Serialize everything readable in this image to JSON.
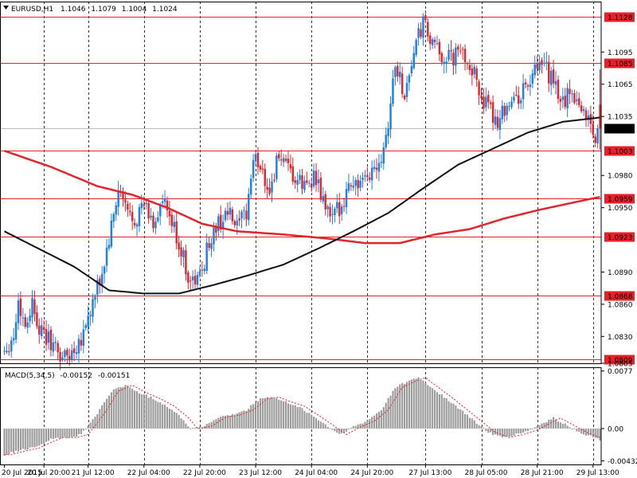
{
  "header": {
    "symbol": "EURUSD,H1",
    "open": "1.1046",
    "high": "1.1079",
    "low": "1.1004",
    "close": "1.1024"
  },
  "macd_header": {
    "name": "MACD(5,34,5)",
    "main": "-0.00152",
    "signal": "-0.00151"
  },
  "colors": {
    "background": "#ffffff",
    "bull": "#1e7fe6",
    "bear": "#e0262d",
    "level_line": "#e8202a",
    "ma_fast": "#111111",
    "ma_slow": "#e0262d",
    "histogram": "#9a9a9a",
    "signal": "#e0262d",
    "grid": "#000000"
  },
  "chart_data": [
    {
      "type": "candlestick",
      "symbol": "EURUSD",
      "timeframe": "H1",
      "ylim": [
        1.0805,
        1.1142
      ],
      "y_ticks": [
        "1.1095",
        "1.1065",
        "1.1035",
        "1.0980",
        "1.0950",
        "1.0890",
        "1.0860",
        "1.0830",
        "1.0805"
      ],
      "x_ticks": [
        "20 Jul 2015",
        "20 Jul 20:00",
        "21 Jul 12:00",
        "22 Jul 04:00",
        "22 Jul 20:00",
        "23 Jul 12:00",
        "24 Jul 04:00",
        "24 Jul 20:00",
        "27 Jul 13:00",
        "28 Jul 05:00",
        "28 Jul 21:00",
        "29 Jul 13:00"
      ],
      "levels": [
        "1.1128",
        "1.1085",
        "1.1003",
        "1.0959",
        "1.0923",
        "1.0868",
        "1.0809"
      ],
      "current_price": "1.1024",
      "anchors": [
        [
          0,
          1.0818
        ],
        [
          4,
          1.083
        ],
        [
          6,
          1.0862
        ],
        [
          9,
          1.084
        ],
        [
          12,
          1.0862
        ],
        [
          16,
          1.0832
        ],
        [
          20,
          1.0825
        ],
        [
          24,
          1.0812
        ],
        [
          28,
          1.0812
        ],
        [
          33,
          1.083
        ],
        [
          38,
          1.086
        ],
        [
          42,
          1.0888
        ],
        [
          46,
          1.093
        ],
        [
          49,
          1.0965
        ],
        [
          53,
          1.0945
        ],
        [
          56,
          1.094
        ],
        [
          60,
          1.0952
        ],
        [
          64,
          1.0935
        ],
        [
          68,
          1.0955
        ],
        [
          72,
          1.0935
        ],
        [
          76,
          1.091
        ],
        [
          80,
          1.088
        ],
        [
          84,
          1.0885
        ],
        [
          88,
          1.0918
        ],
        [
          92,
          1.0935
        ],
        [
          96,
          1.0945
        ],
        [
          100,
          1.093
        ],
        [
          104,
          1.0945
        ],
        [
          107,
          1.0995
        ],
        [
          110,
          1.099
        ],
        [
          114,
          1.0965
        ],
        [
          118,
          1.1
        ],
        [
          121,
          1.0985
        ],
        [
          125,
          1.0975
        ],
        [
          129,
          1.097
        ],
        [
          133,
          1.098
        ],
        [
          137,
          1.0955
        ],
        [
          141,
          1.0938
        ],
        [
          145,
          1.0955
        ],
        [
          149,
          1.0975
        ],
        [
          154,
          1.097
        ],
        [
          158,
          1.0985
        ],
        [
          162,
          1.1
        ],
        [
          165,
          1.103
        ],
        [
          168,
          1.1085
        ],
        [
          172,
          1.1055
        ],
        [
          176,
          1.1095
        ],
        [
          180,
          1.1122
        ],
        [
          184,
          1.11
        ],
        [
          188,
          1.1092
        ],
        [
          192,
          1.1088
        ],
        [
          196,
          1.1095
        ],
        [
          200,
          1.1085
        ],
        [
          204,
          1.106
        ],
        [
          208,
          1.104
        ],
        [
          212,
          1.1032
        ],
        [
          216,
          1.1048
        ],
        [
          220,
          1.105
        ],
        [
          224,
          1.1062
        ],
        [
          228,
          1.1075
        ],
        [
          232,
          1.1082
        ],
        [
          236,
          1.1065
        ],
        [
          240,
          1.1048
        ],
        [
          244,
          1.106
        ],
        [
          248,
          1.1042
        ],
        [
          251,
          1.1035
        ],
        [
          254,
          1.1015
        ],
        [
          256,
          1.1024
        ]
      ],
      "ma_fast": [
        [
          0,
          1.0928
        ],
        [
          30,
          1.0895
        ],
        [
          45,
          1.0873
        ],
        [
          60,
          1.087
        ],
        [
          75,
          1.087
        ],
        [
          90,
          1.0878
        ],
        [
          105,
          1.0887
        ],
        [
          120,
          1.0897
        ],
        [
          135,
          1.0912
        ],
        [
          150,
          1.0928
        ],
        [
          165,
          1.0945
        ],
        [
          180,
          1.0968
        ],
        [
          195,
          1.099
        ],
        [
          210,
          1.1005
        ],
        [
          225,
          1.102
        ],
        [
          240,
          1.103
        ],
        [
          256,
          1.1034
        ]
      ],
      "ma_slow": [
        [
          0,
          1.1003
        ],
        [
          20,
          1.0988
        ],
        [
          40,
          1.097
        ],
        [
          55,
          1.0962
        ],
        [
          70,
          1.095
        ],
        [
          85,
          1.0935
        ],
        [
          100,
          1.0928
        ],
        [
          120,
          1.0925
        ],
        [
          140,
          1.0921
        ],
        [
          155,
          1.0917
        ],
        [
          170,
          1.0917
        ],
        [
          185,
          1.0925
        ],
        [
          200,
          1.093
        ],
        [
          215,
          1.094
        ],
        [
          230,
          1.0948
        ],
        [
          245,
          1.0955
        ],
        [
          256,
          1.096
        ]
      ]
    },
    {
      "type": "bar",
      "name": "MACD(5,34,5)",
      "ylim": [
        -0.0048,
        0.0082
      ],
      "y_ticks": [
        "0.0077",
        "0.00",
        "-0.00432"
      ],
      "anchors": [
        [
          0,
          -0.0035
        ],
        [
          6,
          -0.003
        ],
        [
          12,
          -0.0026
        ],
        [
          16,
          -0.002
        ],
        [
          22,
          -0.0012
        ],
        [
          28,
          -0.0012
        ],
        [
          33,
          -0.0008
        ],
        [
          40,
          0.002
        ],
        [
          46,
          0.005
        ],
        [
          52,
          0.0058
        ],
        [
          58,
          0.0048
        ],
        [
          64,
          0.004
        ],
        [
          70,
          0.003
        ],
        [
          76,
          0.0015
        ],
        [
          80,
          0.0
        ],
        [
          86,
          0.0003
        ],
        [
          92,
          0.0015
        ],
        [
          98,
          0.0018
        ],
        [
          104,
          0.0025
        ],
        [
          110,
          0.004
        ],
        [
          115,
          0.0042
        ],
        [
          120,
          0.0036
        ],
        [
          126,
          0.003
        ],
        [
          132,
          0.0018
        ],
        [
          138,
          0.0005
        ],
        [
          144,
          -0.0008
        ],
        [
          150,
          0.0002
        ],
        [
          156,
          0.001
        ],
        [
          162,
          0.0025
        ],
        [
          168,
          0.0055
        ],
        [
          174,
          0.0064
        ],
        [
          178,
          0.0068
        ],
        [
          184,
          0.0054
        ],
        [
          190,
          0.004
        ],
        [
          196,
          0.0025
        ],
        [
          202,
          0.001
        ],
        [
          208,
          -0.0005
        ],
        [
          214,
          -0.0012
        ],
        [
          220,
          -0.0008
        ],
        [
          226,
          -0.0002
        ],
        [
          232,
          0.0008
        ],
        [
          236,
          0.0014
        ],
        [
          242,
          0.0004
        ],
        [
          248,
          -0.0006
        ],
        [
          256,
          -0.0015
        ]
      ]
    }
  ]
}
